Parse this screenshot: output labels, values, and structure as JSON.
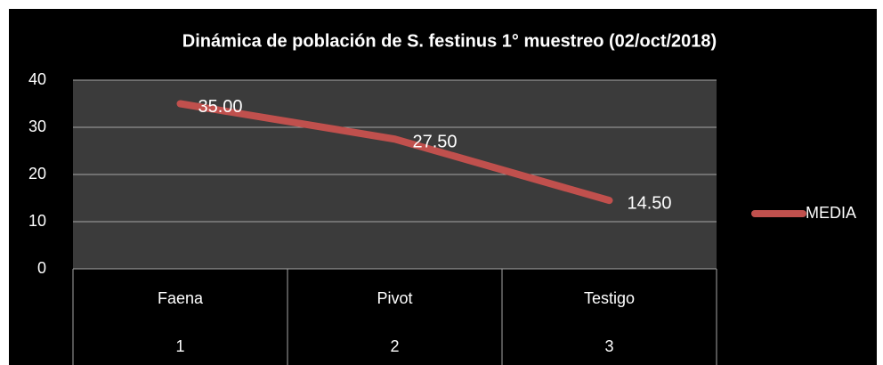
{
  "chart_data": {
    "type": "line",
    "title": "Dinámica de población de S. festinus 1° muestreo (02/oct/2018)",
    "categories": [
      "Faena",
      "Pivot",
      "Testigo"
    ],
    "subcategories": [
      "1",
      "2",
      "3"
    ],
    "series": [
      {
        "name": "MEDIA",
        "color": "#c0504d",
        "values": [
          35,
          27.5,
          14.5
        ],
        "value_labels": [
          "35.00",
          "27.50",
          "14.50"
        ]
      }
    ],
    "ylim": [
      0,
      40
    ],
    "yticks": [
      0,
      10,
      20,
      30,
      40
    ],
    "grid": true,
    "legend": "right"
  }
}
